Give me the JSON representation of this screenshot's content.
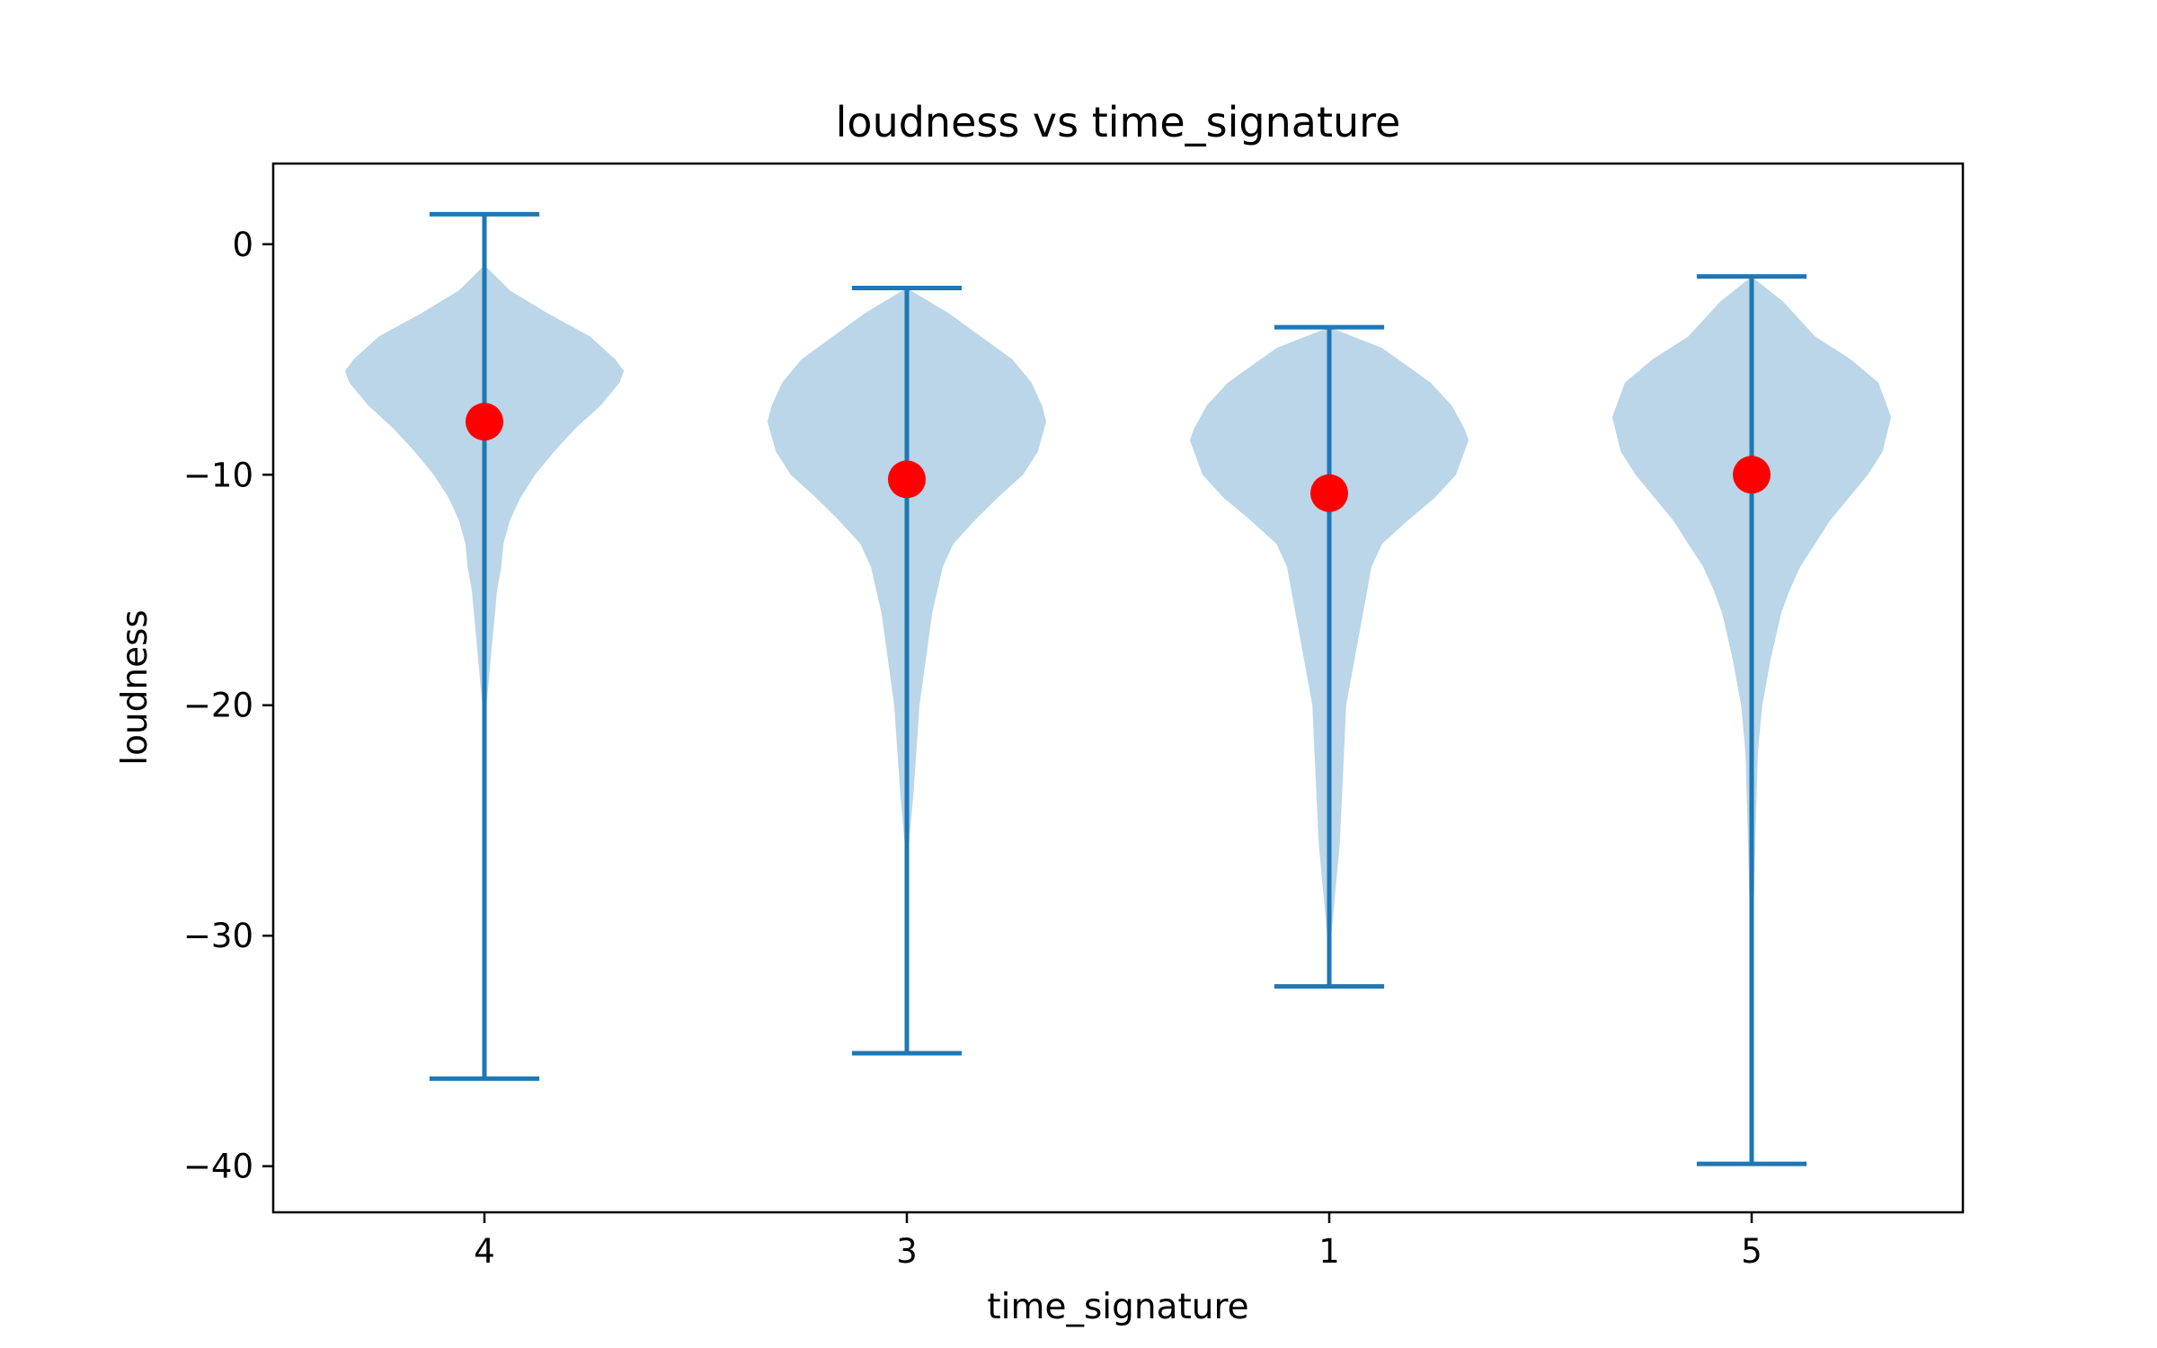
{
  "chart_data": {
    "type": "violin",
    "title": "loudness vs time_signature",
    "xlabel": "time_signature",
    "ylabel": "loudness",
    "categories": [
      "4",
      "3",
      "1",
      "5"
    ],
    "ylim": [
      -42,
      3.5
    ],
    "yticks": [
      0,
      -10,
      -20,
      -30,
      -40
    ],
    "grid": false,
    "colors": {
      "violin_fill": "#bad6e8",
      "whisker": "#1f77b4",
      "mean_marker": "#ff0000"
    },
    "violins": [
      {
        "category": "4",
        "min": -36.2,
        "max": 1.3,
        "mean": -7.7,
        "profile": [
          [
            1.3,
            0
          ],
          [
            -1,
            0.01
          ],
          [
            -2,
            0.12
          ],
          [
            -3,
            0.3
          ],
          [
            -4,
            0.5
          ],
          [
            -5,
            0.62
          ],
          [
            -5.5,
            0.66
          ],
          [
            -6,
            0.64
          ],
          [
            -7,
            0.55
          ],
          [
            -8,
            0.43
          ],
          [
            -9,
            0.33
          ],
          [
            -10,
            0.24
          ],
          [
            -11,
            0.17
          ],
          [
            -12,
            0.12
          ],
          [
            -13,
            0.09
          ],
          [
            -14,
            0.08
          ],
          [
            -15,
            0.06
          ],
          [
            -16,
            0.05
          ],
          [
            -18,
            0.03
          ],
          [
            -20,
            0.01
          ],
          [
            -22,
            0.007
          ],
          [
            -25,
            0.004
          ],
          [
            -30,
            0.002
          ],
          [
            -36.2,
            0
          ]
        ]
      },
      {
        "category": "3",
        "min": -35.1,
        "max": -1.9,
        "mean": -10.2,
        "profile": [
          [
            -1.9,
            0
          ],
          [
            -3,
            0.2
          ],
          [
            -4,
            0.35
          ],
          [
            -5,
            0.5
          ],
          [
            -6,
            0.59
          ],
          [
            -7,
            0.64
          ],
          [
            -7.7,
            0.66
          ],
          [
            -9,
            0.62
          ],
          [
            -10,
            0.55
          ],
          [
            -11,
            0.43
          ],
          [
            -12,
            0.32
          ],
          [
            -13,
            0.22
          ],
          [
            -14,
            0.17
          ],
          [
            -16,
            0.12
          ],
          [
            -18,
            0.09
          ],
          [
            -20,
            0.06
          ],
          [
            -22,
            0.045
          ],
          [
            -24,
            0.03
          ],
          [
            -26,
            0.01
          ],
          [
            -30,
            0.005
          ],
          [
            -35.1,
            0
          ]
        ]
      },
      {
        "category": "1",
        "min": -32.2,
        "max": -3.6,
        "mean": -10.8,
        "profile": [
          [
            -3.6,
            0
          ],
          [
            -4.5,
            0.25
          ],
          [
            -6,
            0.48
          ],
          [
            -7,
            0.58
          ],
          [
            -8,
            0.64
          ],
          [
            -8.5,
            0.66
          ],
          [
            -10,
            0.6
          ],
          [
            -11,
            0.5
          ],
          [
            -12,
            0.37
          ],
          [
            -13,
            0.25
          ],
          [
            -14,
            0.2
          ],
          [
            -15,
            0.18
          ],
          [
            -16,
            0.16
          ],
          [
            -18,
            0.12
          ],
          [
            -20,
            0.08
          ],
          [
            -22,
            0.07
          ],
          [
            -24,
            0.06
          ],
          [
            -25,
            0.055
          ],
          [
            -26,
            0.05
          ],
          [
            -28,
            0.03
          ],
          [
            -30,
            0.01
          ],
          [
            -32.2,
            0
          ]
        ]
      },
      {
        "category": "5",
        "min": -39.9,
        "max": -1.4,
        "mean": -10.0,
        "profile": [
          [
            -1.4,
            0
          ],
          [
            -2.5,
            0.15
          ],
          [
            -4,
            0.3
          ],
          [
            -5,
            0.47
          ],
          [
            -6,
            0.6
          ],
          [
            -7,
            0.64
          ],
          [
            -7.5,
            0.66
          ],
          [
            -9,
            0.62
          ],
          [
            -10,
            0.55
          ],
          [
            -11,
            0.46
          ],
          [
            -12,
            0.37
          ],
          [
            -13,
            0.3
          ],
          [
            -14,
            0.23
          ],
          [
            -15,
            0.18
          ],
          [
            -16,
            0.14
          ],
          [
            -18,
            0.09
          ],
          [
            -20,
            0.05
          ],
          [
            -22,
            0.03
          ],
          [
            -25,
            0.02
          ],
          [
            -28,
            0.012
          ],
          [
            -30,
            0.005
          ],
          [
            -35,
            0.002
          ],
          [
            -39.9,
            0
          ]
        ]
      }
    ]
  }
}
